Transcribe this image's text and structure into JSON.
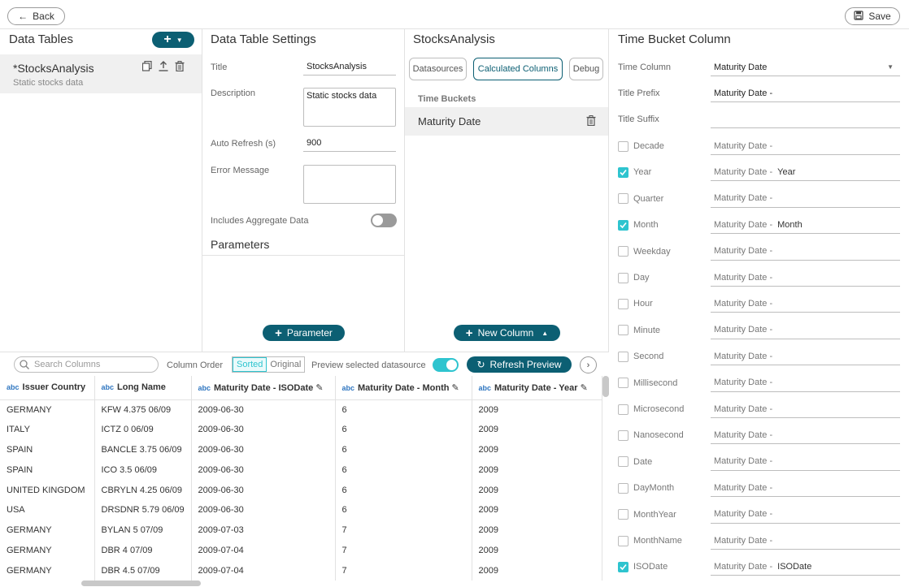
{
  "topbar": {
    "back_label": "Back",
    "save_label": "Save"
  },
  "data_tables": {
    "title": "Data Tables",
    "item": {
      "name": "*StocksAnalysis",
      "description": "Static stocks data"
    }
  },
  "settings": {
    "title": "Data Table Settings",
    "title_label": "Title",
    "title_value": "StocksAnalysis",
    "description_label": "Description",
    "description_value": "Static stocks data",
    "auto_refresh_label": "Auto Refresh (s)",
    "auto_refresh_value": "900",
    "error_label": "Error Message",
    "aggregate_label": "Includes Aggregate Data",
    "parameters_title": "Parameters",
    "parameter_button": "Parameter"
  },
  "stocks": {
    "title": "StocksAnalysis",
    "tabs": [
      "Datasources",
      "Calculated Columns",
      "Debug"
    ],
    "section_label": "Time Buckets",
    "bucket_item": "Maturity Date",
    "new_column_button": "New Column"
  },
  "time_bucket": {
    "title": "Time Bucket Column",
    "time_column_label": "Time Column",
    "time_column_value": "Maturity Date",
    "prefix_label": "Title Prefix",
    "prefix_value": "Maturity Date -",
    "suffix_label": "Title Suffix",
    "rows": [
      {
        "label": "Decade",
        "checked": false,
        "prefix": "Maturity Date -",
        "suffix": ""
      },
      {
        "label": "Year",
        "checked": true,
        "prefix": "Maturity Date -",
        "suffix": "Year"
      },
      {
        "label": "Quarter",
        "checked": false,
        "prefix": "Maturity Date -",
        "suffix": ""
      },
      {
        "label": "Month",
        "checked": true,
        "prefix": "Maturity Date -",
        "suffix": "Month"
      },
      {
        "label": "Weekday",
        "checked": false,
        "prefix": "Maturity Date -",
        "suffix": ""
      },
      {
        "label": "Day",
        "checked": false,
        "prefix": "Maturity Date -",
        "suffix": ""
      },
      {
        "label": "Hour",
        "checked": false,
        "prefix": "Maturity Date -",
        "suffix": ""
      },
      {
        "label": "Minute",
        "checked": false,
        "prefix": "Maturity Date -",
        "suffix": ""
      },
      {
        "label": "Second",
        "checked": false,
        "prefix": "Maturity Date -",
        "suffix": ""
      },
      {
        "label": "Millisecond",
        "checked": false,
        "prefix": "Maturity Date -",
        "suffix": ""
      },
      {
        "label": "Microsecond",
        "checked": false,
        "prefix": "Maturity Date -",
        "suffix": ""
      },
      {
        "label": "Nanosecond",
        "checked": false,
        "prefix": "Maturity Date -",
        "suffix": ""
      },
      {
        "label": "Date",
        "checked": false,
        "prefix": "Maturity Date -",
        "suffix": ""
      },
      {
        "label": "DayMonth",
        "checked": false,
        "prefix": "Maturity Date -",
        "suffix": ""
      },
      {
        "label": "MonthYear",
        "checked": false,
        "prefix": "Maturity Date -",
        "suffix": ""
      },
      {
        "label": "MonthName",
        "checked": false,
        "prefix": "Maturity Date -",
        "suffix": ""
      },
      {
        "label": "ISODate",
        "checked": true,
        "prefix": "Maturity Date -",
        "suffix": "ISODate"
      }
    ]
  },
  "preview": {
    "search_placeholder": "Search Columns",
    "column_order_label": "Column Order",
    "sorted_label": "Sorted",
    "original_label": "Original",
    "preview_selected_label": "Preview selected datasource",
    "refresh_button": "Refresh Preview",
    "type_tag": "abc",
    "columns": [
      "Issuer Country",
      "Long Name",
      "Maturity Date - ISODate",
      "Maturity Date - Month",
      "Maturity Date - Year"
    ],
    "rows": [
      [
        "GERMANY",
        "KFW 4.375 06/09",
        "2009-06-30",
        "6",
        "2009"
      ],
      [
        "ITALY",
        "ICTZ 0 06/09",
        "2009-06-30",
        "6",
        "2009"
      ],
      [
        "SPAIN",
        "BANCLE 3.75 06/09",
        "2009-06-30",
        "6",
        "2009"
      ],
      [
        "SPAIN",
        "ICO 3.5 06/09",
        "2009-06-30",
        "6",
        "2009"
      ],
      [
        "UNITED KINGDOM",
        "CBRYLN 4.25 06/09",
        "2009-06-30",
        "6",
        "2009"
      ],
      [
        "USA",
        "DRSDNR 5.79 06/09",
        "2009-06-30",
        "6",
        "2009"
      ],
      [
        "GERMANY",
        "BYLAN 5 07/09",
        "2009-07-03",
        "7",
        "2009"
      ],
      [
        "GERMANY",
        "DBR 4 07/09",
        "2009-07-04",
        "7",
        "2009"
      ],
      [
        "GERMANY",
        "DBR 4.5 07/09",
        "2009-07-04",
        "7",
        "2009"
      ]
    ]
  }
}
